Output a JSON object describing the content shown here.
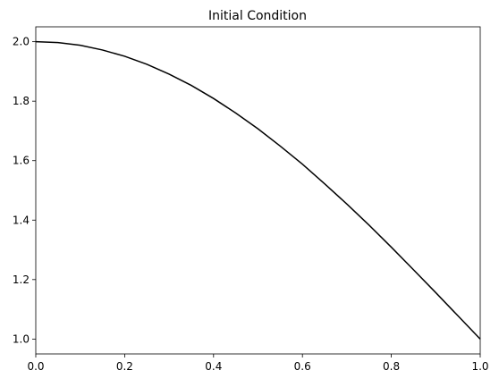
{
  "chart_data": {
    "type": "line",
    "title": "Initial Condition",
    "x": [
      0,
      0.05,
      0.1,
      0.15,
      0.2,
      0.25,
      0.3,
      0.35,
      0.4,
      0.45,
      0.5,
      0.55,
      0.6,
      0.65,
      0.7,
      0.75,
      0.8,
      0.85,
      0.9,
      0.95,
      1.0
    ],
    "series": [
      {
        "color": "#000000",
        "values": [
          2.0,
          1.997,
          1.988,
          1.972,
          1.951,
          1.924,
          1.891,
          1.853,
          1.809,
          1.76,
          1.707,
          1.649,
          1.588,
          1.522,
          1.454,
          1.383,
          1.309,
          1.233,
          1.156,
          1.078,
          1.0
        ]
      }
    ],
    "xlim": [
      0,
      1.0
    ],
    "ylim": [
      0.95,
      2.05
    ],
    "xticks": [
      {
        "value": 0,
        "label": "0.0"
      },
      {
        "value": 0.2,
        "label": "0.2"
      },
      {
        "value": 0.4,
        "label": "0.4"
      },
      {
        "value": 0.6,
        "label": "0.6"
      },
      {
        "value": 0.8,
        "label": "0.8"
      },
      {
        "value": 1.0,
        "label": "1.0"
      }
    ],
    "yticks": [
      {
        "value": 1.0,
        "label": "1.0"
      },
      {
        "value": 1.2,
        "label": "1.2"
      },
      {
        "value": 1.4,
        "label": "1.4"
      },
      {
        "value": 1.6,
        "label": "1.6"
      },
      {
        "value": 1.8,
        "label": "1.8"
      },
      {
        "value": 2.0,
        "label": "2.0"
      }
    ],
    "grid": false
  }
}
